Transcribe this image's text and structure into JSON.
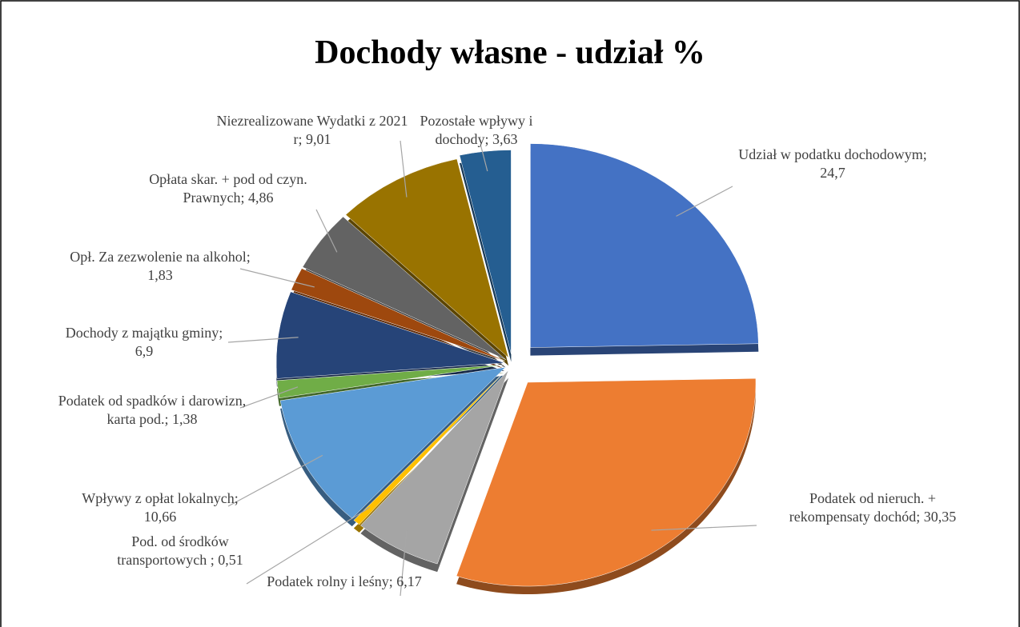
{
  "chart_data": {
    "type": "pie",
    "title": "Dochody własne - udział %",
    "categories": [
      "Udział w podatku dochodowym; 24,7",
      "Podatek od nieruch. + rekompensaty dochód; 30,35",
      "Podatek rolny i leśny; 6,17",
      "Pod. od środków transportowych ; 0,51",
      "Wpływy z opłat lokalnych; 10,66",
      "Podatek od spadków i darowizn, karta pod.; 1,38",
      "Dochody z majątku gminy; 6,9",
      "Opł. Za zezwolenie na alkohol; 1,83",
      "Opłata skar. +  pod od czyn. Prawnych; 4,86",
      "Niezrealizowane Wydatki z 2021 r; 9,01",
      "Pozostałe wpływy i dochody; 3,63"
    ],
    "values": [
      24.7,
      30.35,
      6.17,
      0.51,
      10.66,
      1.38,
      6.9,
      1.83,
      4.86,
      9.01,
      3.63
    ],
    "colors": [
      "#4472c4",
      "#ed7d31",
      "#a5a5a5",
      "#ffc000",
      "#5b9bd5",
      "#70ad47",
      "#264478",
      "#9e480e",
      "#636363",
      "#997300",
      "#255e91"
    ]
  }
}
